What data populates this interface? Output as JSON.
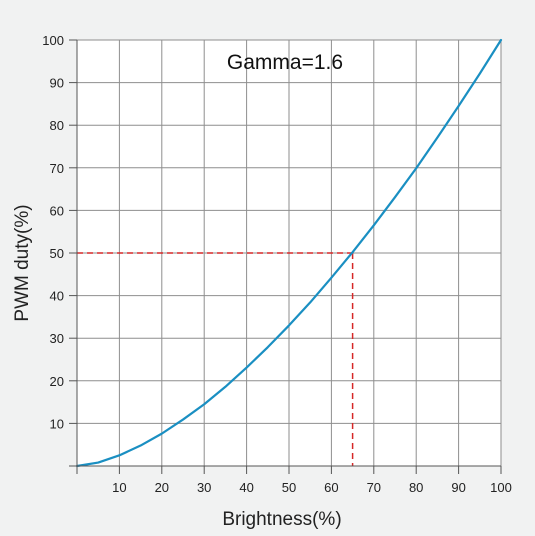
{
  "chart_data": {
    "type": "line",
    "title": "",
    "annotation": "Gamma=1.6",
    "xlabel": "Brightness(%)",
    "ylabel": "PWM duty(%)",
    "xlim": [
      0,
      100
    ],
    "ylim": [
      0,
      100
    ],
    "x_ticks": [
      "10",
      "20",
      "30",
      "40",
      "50",
      "60",
      "70",
      "80",
      "90",
      "100"
    ],
    "y_ticks": [
      "10",
      "20",
      "30",
      "40",
      "50",
      "60",
      "70",
      "80",
      "90",
      "100"
    ],
    "grid": true,
    "series": [
      {
        "color": "#1a8fc2",
        "points": [
          [
            0,
            0
          ],
          [
            5,
            0.8
          ],
          [
            10,
            2.5
          ],
          [
            15,
            4.8
          ],
          [
            20,
            7.6
          ],
          [
            25,
            10.9
          ],
          [
            30,
            14.5
          ],
          [
            35,
            18.6
          ],
          [
            40,
            23.1
          ],
          [
            45,
            27.9
          ],
          [
            50,
            33.0
          ],
          [
            55,
            38.4
          ],
          [
            60,
            44.2
          ],
          [
            65,
            50.2
          ],
          [
            70,
            56.5
          ],
          [
            75,
            63.1
          ],
          [
            80,
            69.9
          ],
          [
            85,
            77.1
          ],
          [
            90,
            84.5
          ],
          [
            95,
            92.1
          ],
          [
            100,
            100
          ]
        ]
      }
    ],
    "reference_lines": {
      "color": "#d62828",
      "x": 65,
      "y": 50
    }
  }
}
